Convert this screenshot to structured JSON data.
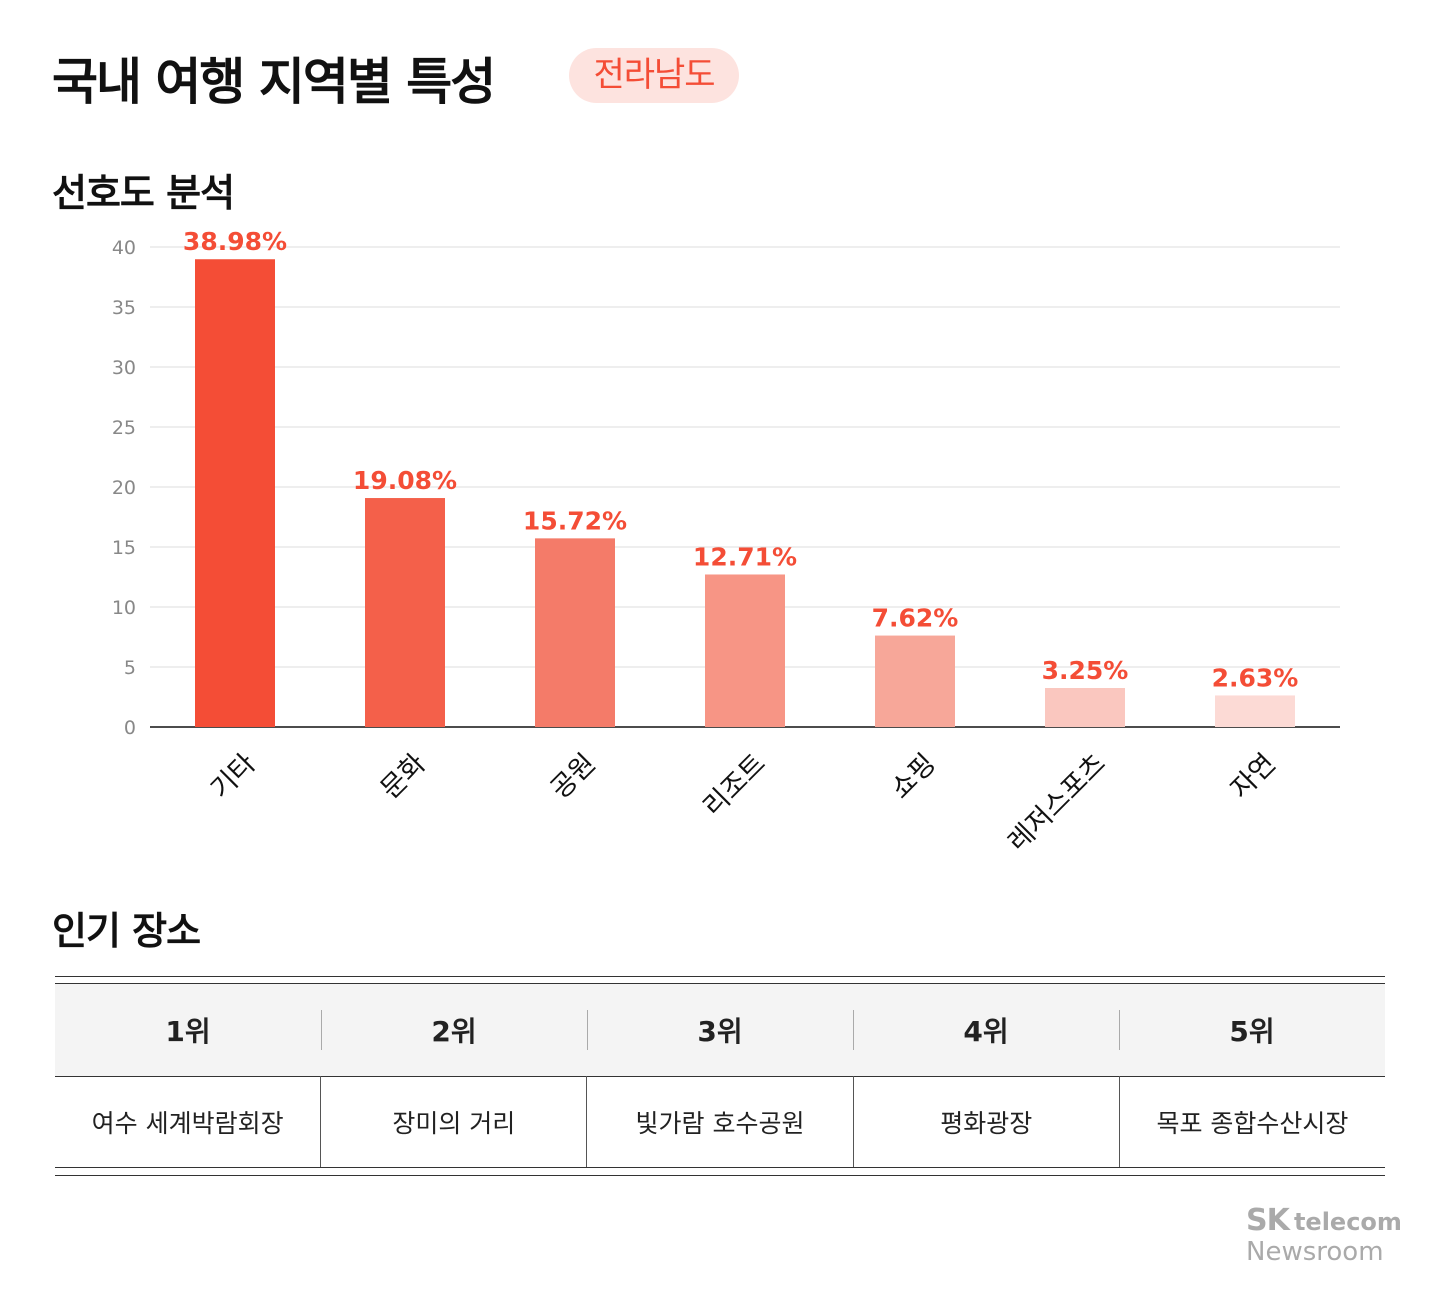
{
  "header": {
    "title": "국내 여행 지역별 특성",
    "region_badge": "전라남도"
  },
  "sections": {
    "preference": "선호도 분석",
    "popular": "인기 장소"
  },
  "chart_data": {
    "type": "bar",
    "title": "",
    "categories": [
      "기타",
      "문화",
      "공원",
      "리조트",
      "쇼핑",
      "레저스포츠",
      "자연"
    ],
    "values": [
      38.98,
      19.08,
      15.72,
      12.71,
      7.62,
      3.25,
      2.63
    ],
    "data_labels": [
      "38.98%",
      "19.08%",
      "15.72%",
      "12.71%",
      "7.62%",
      "3.25%",
      "2.63%"
    ],
    "colors": [
      "#f44d36",
      "#f4604a",
      "#f47b69",
      "#f79585",
      "#f7a799",
      "#fac7bf",
      "#fcdad5"
    ],
    "label_color": "#f44d36",
    "ylim": [
      0,
      40
    ],
    "yticks": [
      0,
      5,
      10,
      15,
      20,
      25,
      30,
      35,
      40
    ],
    "grid": true,
    "xlabel": "",
    "ylabel": ""
  },
  "table": {
    "headers": [
      "1위",
      "2위",
      "3위",
      "4위",
      "5위"
    ],
    "rows": [
      [
        "여수 세계박람회장",
        "장미의 거리",
        "빛가람 호수공원",
        "평화광장",
        "목포 종합수산시장"
      ]
    ]
  },
  "logo": {
    "brand": "SK",
    "sub": "telecom",
    "line2": "Newsroom"
  }
}
